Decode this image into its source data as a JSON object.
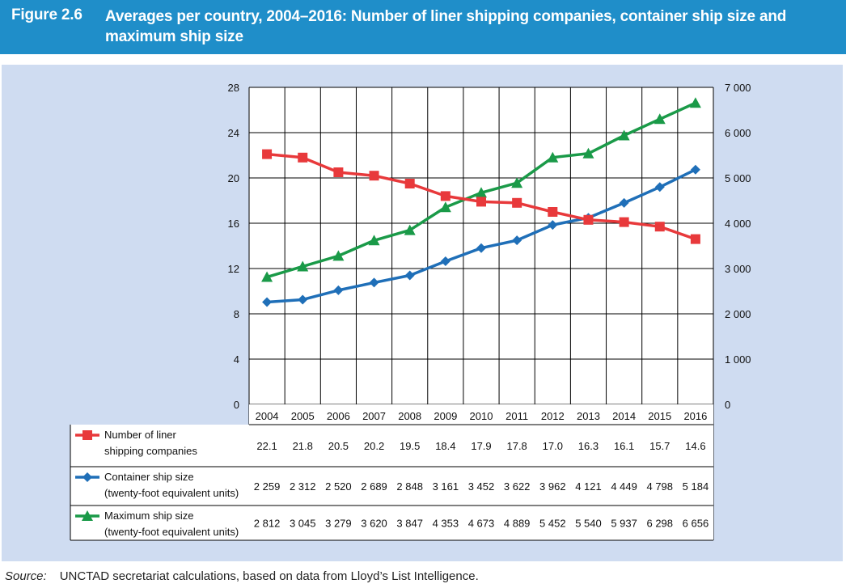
{
  "figure": {
    "number": "Figure 2.6",
    "title": "Averages per country, 2004–2016: Number of liner shipping companies, container ship size and maximum ship size"
  },
  "source": {
    "label": "Source:",
    "text": "UNCTAD secretariat calculations, based on data from Lloyd’s List Intelligence."
  },
  "chart_data": {
    "type": "line",
    "title": "Averages per country, 2004–2016: Number of liner shipping companies, container ship size and maximum ship size",
    "categories": [
      "2004",
      "2005",
      "2006",
      "2007",
      "2008",
      "2009",
      "2010",
      "2011",
      "2012",
      "2013",
      "2014",
      "2015",
      "2016"
    ],
    "left_axis": {
      "ylim": [
        0,
        28
      ],
      "ticks": [
        "0",
        "4",
        "8",
        "12",
        "16",
        "20",
        "24",
        "28"
      ]
    },
    "right_axis": {
      "ylim": [
        0,
        7000
      ],
      "ticks": [
        "0",
        "1 000",
        "2 000",
        "3 000",
        "4 000",
        "5 000",
        "6 000",
        "7 000"
      ]
    },
    "grid": true,
    "legend_placement": "table-bottom",
    "series": [
      {
        "name": "Number of liner shipping companies",
        "legend_lines": [
          "Number of liner",
          "shipping companies"
        ],
        "axis": "left",
        "color": "#e8393b",
        "marker": "square",
        "values": [
          22.1,
          21.8,
          20.5,
          20.2,
          19.5,
          18.4,
          17.9,
          17.8,
          17.0,
          16.3,
          16.1,
          15.7,
          14.6
        ],
        "labels": [
          "22.1",
          "21.8",
          "20.5",
          "20.2",
          "19.5",
          "18.4",
          "17.9",
          "17.8",
          "17.0",
          "16.3",
          "16.1",
          "15.7",
          "14.6"
        ]
      },
      {
        "name": "Container ship size (twenty-foot equivalent units)",
        "legend_lines": [
          "Container ship size",
          "(twenty-foot equivalent units)"
        ],
        "axis": "right",
        "color": "#1f6fb8",
        "marker": "diamond",
        "values": [
          2259,
          2312,
          2520,
          2689,
          2848,
          3161,
          3452,
          3622,
          3962,
          4121,
          4449,
          4798,
          5184
        ],
        "labels": [
          "2 259",
          "2 312",
          "2 520",
          "2 689",
          "2 848",
          "3 161",
          "3 452",
          "3 622",
          "3 962",
          "4 121",
          "4 449",
          "4 798",
          "5 184"
        ]
      },
      {
        "name": "Maximum ship size (twenty-foot equivalent units)",
        "legend_lines": [
          "Maximum ship size",
          "(twenty-foot equivalent units)"
        ],
        "axis": "right",
        "color": "#1a9a48",
        "marker": "triangle",
        "values": [
          2812,
          3045,
          3279,
          3620,
          3847,
          4353,
          4673,
          4889,
          5452,
          5540,
          5937,
          6298,
          6656
        ],
        "labels": [
          "2 812",
          "3 045",
          "3 279",
          "3 620",
          "3 847",
          "4 353",
          "4 673",
          "4 889",
          "5 452",
          "5 540",
          "5 937",
          "6 298",
          "6 656"
        ]
      }
    ]
  }
}
